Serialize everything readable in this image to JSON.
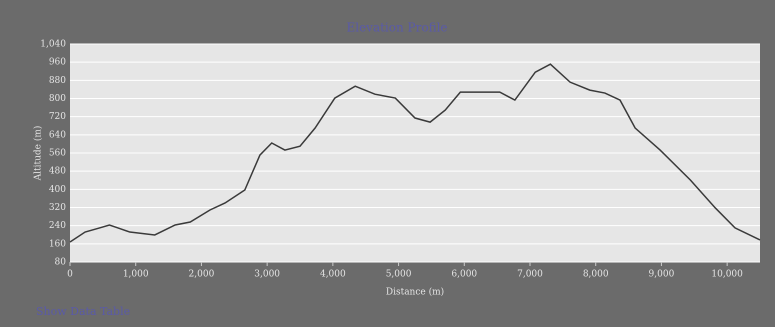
{
  "chart_data": {
    "type": "line",
    "title": "Elevation Profile",
    "footer": "Show Data Table",
    "x_label": "Distance (m)",
    "y_label": "Altitude (m)",
    "x": [
      0,
      230,
      450,
      600,
      730,
      910,
      1290,
      1600,
      1830,
      2130,
      2360,
      2660,
      2890,
      3070,
      3270,
      3500,
      3730,
      4030,
      4340,
      4640,
      4950,
      5250,
      5480,
      5710,
      5940,
      6240,
      6540,
      6770,
      7080,
      7310,
      7610,
      7910,
      8140,
      8370,
      8600,
      8980,
      9440,
      9820,
      10120,
      10500
    ],
    "series": [
      {
        "name": "Altitude",
        "color": "#3a3a3a",
        "values": [
          168,
          212,
          230,
          243,
          230,
          212,
          199,
          243,
          256,
          309,
          340,
          397,
          551,
          604,
          573,
          590,
          670,
          802,
          854,
          819,
          802,
          714,
          696,
          749,
          828,
          828,
          828,
          793,
          916,
          951,
          872,
          837,
          824,
          793,
          670,
          573,
          441,
          318,
          230,
          177
        ]
      }
    ],
    "xlim": [
      0,
      10500
    ],
    "xticks": [
      0,
      {
        "value": 1000,
        "label": "1,000"
      },
      {
        "value": 2000,
        "label": "2,000"
      },
      {
        "value": 3000,
        "label": "3,000"
      },
      {
        "value": 4000,
        "label": "4,000"
      },
      {
        "value": 5000,
        "label": "5,000"
      },
      {
        "value": 6000,
        "label": "6,000"
      },
      {
        "value": 7000,
        "label": "7,000"
      },
      {
        "value": 8000,
        "label": "8,000"
      },
      {
        "value": 9000,
        "label": "9,000"
      },
      {
        "value": 10000,
        "label": "10,000"
      }
    ],
    "ylim": [
      80,
      1040
    ],
    "yticks": [
      80,
      160,
      240,
      320,
      400,
      480,
      560,
      640,
      720,
      800,
      880,
      960,
      {
        "value": 1040,
        "label": "1,040"
      }
    ],
    "grid": true
  }
}
